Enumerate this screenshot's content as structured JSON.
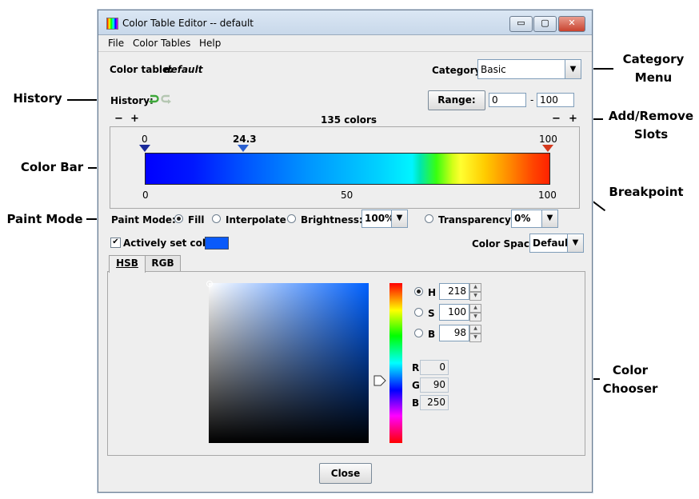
{
  "annotations": {
    "category_menu": "Category Menu",
    "history": "History",
    "add_remove": "Add/Remove Slots",
    "color_bar": "Color Bar",
    "breakpoint": "Breakpoint",
    "paint_mode": "Paint Mode",
    "color_chooser": "Color Chooser"
  },
  "window": {
    "title": "Color Table Editor -- default",
    "buttons": {
      "minimize": "▭",
      "maximize": "▢",
      "close": "✕"
    }
  },
  "menu": [
    "File",
    "Color Tables",
    "Help"
  ],
  "color_table": {
    "label": "Color table:",
    "name": "default"
  },
  "category": {
    "label": "Category:",
    "value": "Basic"
  },
  "history": {
    "label": "History:",
    "undo_icon": "undo-arrow-icon",
    "redo_icon": "redo-arrow-icon"
  },
  "range": {
    "button": "Range:",
    "min": "0",
    "dash": "-",
    "max": "100"
  },
  "slots": {
    "minus": "−",
    "plus": "+",
    "count": "135 colors"
  },
  "color_bar": {
    "breakpoints": [
      {
        "label": "0",
        "value": 0,
        "color": "#1a2a9a"
      },
      {
        "label": "24.3",
        "value": 24.3,
        "color": "#2a5fd0"
      },
      {
        "label": "100",
        "value": 100,
        "color": "#d53a1e"
      }
    ],
    "scale": [
      "0",
      "50",
      "100"
    ]
  },
  "paint_mode": {
    "label": "Paint Mode:",
    "fill": "Fill",
    "interpolate": "Interpolate",
    "brightness": "Brightness:",
    "brightness_value": "100%",
    "transparency": "Transparency:",
    "transparency_value": "0%",
    "selected": "Fill"
  },
  "active_color": {
    "label": "Actively set color",
    "checked": true,
    "swatch": "#0a5afa"
  },
  "color_space": {
    "label": "Color Space:",
    "value": "Default"
  },
  "tabs": [
    {
      "label": "HSB",
      "mnemonic": "H"
    },
    {
      "label": "RGB",
      "mnemonic": "G"
    }
  ],
  "chooser": {
    "hsb": [
      {
        "label": "H",
        "value": "218",
        "selected": true
      },
      {
        "label": "S",
        "value": "100",
        "selected": false
      },
      {
        "label": "B",
        "value": "98",
        "selected": false
      }
    ],
    "rgb": [
      {
        "label": "R",
        "value": "0"
      },
      {
        "label": "G",
        "value": "90"
      },
      {
        "label": "B",
        "value": "250"
      }
    ],
    "spin_up": "▲",
    "spin_down": "▼",
    "hue_color": "#0061ff"
  },
  "close_label": "Close"
}
